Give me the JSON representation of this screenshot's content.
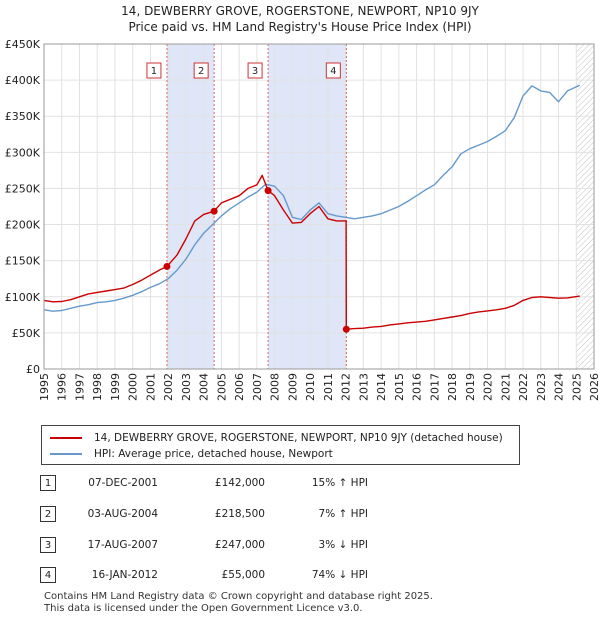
{
  "chart_data": {
    "type": "line",
    "title": "14, DEWBERRY GROVE, ROGERSTONE, NEWPORT, NP10 9JY",
    "subtitle": "Price paid vs. HM Land Registry's House Price Index (HPI)",
    "xlabel": "",
    "ylabel": "",
    "xlim": [
      1995,
      2026
    ],
    "ylim": [
      0,
      450000
    ],
    "x_ticks": [
      "1995",
      "1996",
      "1997",
      "1998",
      "1999",
      "2000",
      "2001",
      "2002",
      "2003",
      "2004",
      "2005",
      "2006",
      "2007",
      "2008",
      "2009",
      "2010",
      "2011",
      "2012",
      "2013",
      "2014",
      "2015",
      "2016",
      "2017",
      "2018",
      "2019",
      "2020",
      "2021",
      "2022",
      "2023",
      "2024",
      "2025",
      "2026"
    ],
    "y_ticks": [
      {
        "value": 0,
        "label": "£0"
      },
      {
        "value": 50000,
        "label": "£50K"
      },
      {
        "value": 100000,
        "label": "£100K"
      },
      {
        "value": 150000,
        "label": "£150K"
      },
      {
        "value": 200000,
        "label": "£200K"
      },
      {
        "value": 250000,
        "label": "£250K"
      },
      {
        "value": 300000,
        "label": "£300K"
      },
      {
        "value": 350000,
        "label": "£350K"
      },
      {
        "value": 400000,
        "label": "£400K"
      },
      {
        "value": 450000,
        "label": "£450K"
      }
    ],
    "grid": true,
    "shaded_periods": [
      [
        2001.93,
        2004.59
      ],
      [
        2007.63,
        2012.04
      ]
    ],
    "hatched_from": 2025.0,
    "series": [
      {
        "name": "14, DEWBERRY GROVE, ROGERSTONE, NEWPORT, NP10 9JY (detached house)",
        "color": "#cc0000",
        "x": [
          1995,
          1995.5,
          1996,
          1996.5,
          1997,
          1997.5,
          1998,
          1998.5,
          1999,
          1999.5,
          2000,
          2000.5,
          2001,
          2001.5,
          2001.93,
          2002.5,
          2003,
          2003.5,
          2004,
          2004.59,
          2005,
          2005.5,
          2006,
          2006.5,
          2007,
          2007.3,
          2007.63,
          2008,
          2008.5,
          2009,
          2009.5,
          2010,
          2010.5,
          2011,
          2011.5,
          2012.03,
          2012.04,
          2012.5,
          2013,
          2013.5,
          2014,
          2014.5,
          2015,
          2015.5,
          2016,
          2016.5,
          2017,
          2017.5,
          2018,
          2018.5,
          2019,
          2019.5,
          2020,
          2020.5,
          2021,
          2021.5,
          2022,
          2022.5,
          2023,
          2023.5,
          2024,
          2024.5,
          2025.2
        ],
        "values": [
          95000,
          93000,
          93500,
          96000,
          100000,
          104000,
          106000,
          108000,
          110000,
          112000,
          117000,
          123000,
          130000,
          137000,
          142000,
          158000,
          180000,
          205000,
          214000,
          218500,
          230000,
          235000,
          240000,
          250000,
          255000,
          268000,
          247000,
          240000,
          220000,
          202000,
          203000,
          215000,
          225000,
          208000,
          205000,
          205000,
          55000,
          56000,
          56500,
          58000,
          59000,
          61000,
          62500,
          64000,
          65000,
          66000,
          68000,
          70000,
          72000,
          74000,
          77000,
          79000,
          80500,
          82000,
          84000,
          88000,
          95000,
          99000,
          100000,
          99000,
          98000,
          98500,
          101000
        ]
      },
      {
        "name": "HPI: Average price, detached house, Newport",
        "color": "#6699cc",
        "x": [
          1995,
          1995.5,
          1996,
          1996.5,
          1997,
          1997.5,
          1998,
          1998.5,
          1999,
          1999.5,
          2000,
          2000.5,
          2001,
          2001.5,
          2002,
          2002.5,
          2003,
          2003.5,
          2004,
          2004.5,
          2005,
          2005.5,
          2006,
          2006.5,
          2007,
          2007.5,
          2008,
          2008.5,
          2009,
          2009.5,
          2010,
          2010.5,
          2011,
          2011.5,
          2012,
          2012.5,
          2013,
          2013.5,
          2014,
          2014.5,
          2015,
          2015.5,
          2016,
          2016.5,
          2017,
          2017.5,
          2018,
          2018.5,
          2019,
          2019.5,
          2020,
          2020.5,
          2021,
          2021.5,
          2022,
          2022.5,
          2023,
          2023.5,
          2024,
          2024.5,
          2025.2
        ],
        "values": [
          82000,
          80000,
          81000,
          84000,
          87000,
          89000,
          92000,
          93000,
          95000,
          98000,
          102000,
          107000,
          113000,
          118000,
          125000,
          137000,
          152000,
          172000,
          188000,
          200000,
          212000,
          222000,
          230000,
          238000,
          245000,
          256000,
          253000,
          240000,
          210000,
          207000,
          220000,
          230000,
          215000,
          212000,
          210000,
          208000,
          210000,
          212000,
          215000,
          220000,
          225000,
          232000,
          240000,
          248000,
          255000,
          268000,
          280000,
          298000,
          305000,
          310000,
          315000,
          322000,
          330000,
          348000,
          378000,
          392000,
          385000,
          383000,
          370000,
          385000,
          393000
        ]
      }
    ],
    "markers": [
      {
        "label": "1",
        "x": 2001.93,
        "y": 142000
      },
      {
        "label": "2",
        "x": 2004.59,
        "y": 218500
      },
      {
        "label": "3",
        "x": 2007.63,
        "y": 247000
      },
      {
        "label": "4",
        "x": 2012.04,
        "y": 55000
      }
    ]
  },
  "legend": {
    "property_label": "14, DEWBERRY GROVE, ROGERSTONE, NEWPORT, NP10 9JY (detached house)",
    "hpi_label": "HPI: Average price, detached house, Newport"
  },
  "sales": [
    {
      "num": "1",
      "date": "07-DEC-2001",
      "price": "£142,000",
      "hpi": "15% ↑ HPI"
    },
    {
      "num": "2",
      "date": "03-AUG-2004",
      "price": "£218,500",
      "hpi": "7% ↑ HPI"
    },
    {
      "num": "3",
      "date": "17-AUG-2007",
      "price": "£247,000",
      "hpi": "3% ↓ HPI"
    },
    {
      "num": "4",
      "date": "16-JAN-2012",
      "price": "£55,000",
      "hpi": "74% ↓ HPI"
    }
  ],
  "footer": {
    "line1": "Contains HM Land Registry data © Crown copyright and database right 2025.",
    "line2": "This data is licensed under the Open Government Licence v3.0."
  },
  "colors": {
    "property": "#cc0000",
    "hpi": "#6699cc",
    "shade": "#dfe6f7",
    "marker_line": "#dd6666"
  }
}
